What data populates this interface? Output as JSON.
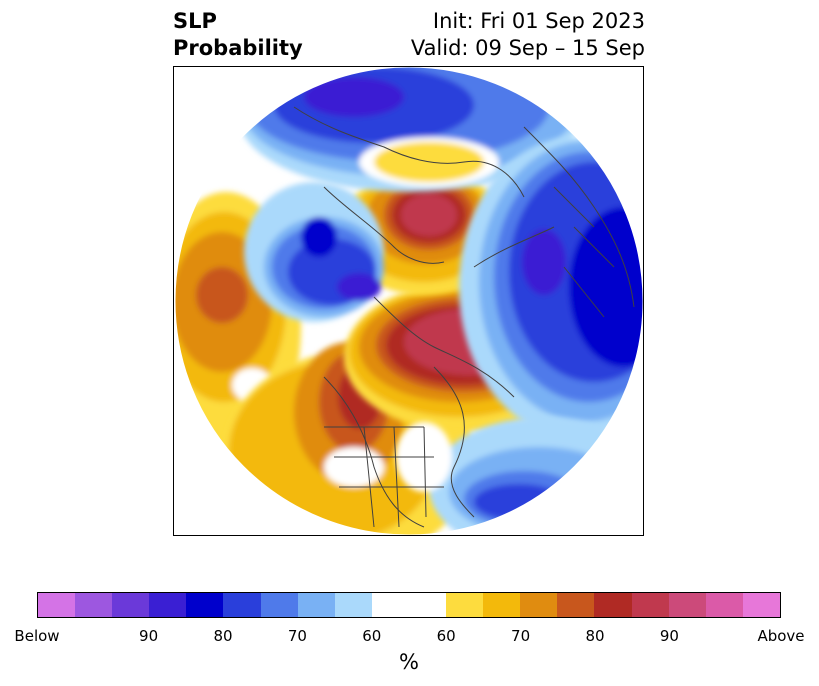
{
  "title": {
    "left_line1": "SLP",
    "left_line2": "Probability",
    "right_line1": "Init: Fri 01 Sep 2023",
    "right_line2": "Valid: 09 Sep – 15 Sep"
  },
  "map": {
    "projection": "north-polar-stereographic",
    "field": "sea level pressure tercile probability",
    "features": [
      "coastlines",
      "country-borders",
      "us-state-borders"
    ],
    "background_outside_domain": "#ffffff"
  },
  "colorbar": {
    "colors": [
      "#d473e6",
      "#9d57e0",
      "#6b39d9",
      "#3a1fd3",
      "#0000cc",
      "#2a3fdb",
      "#4f7aea",
      "#79b1f4",
      "#aad9fb",
      "#ffffff",
      "#ffffff",
      "#fddc3e",
      "#f3b90b",
      "#e08c10",
      "#c8571d",
      "#b02a24",
      "#c0394e",
      "#cc4a7a",
      "#db5aa8",
      "#e777d9"
    ],
    "tick_labels": [
      "Below",
      "90",
      "80",
      "70",
      "60",
      "60",
      "70",
      "80",
      "90",
      "Above"
    ],
    "unit_label": "%"
  },
  "regions": [
    {
      "name": "pacific-ocean-below-high",
      "category": "above",
      "peak_pct": 70
    },
    {
      "name": "siberia-above-core",
      "category": "above",
      "peak_pct": 80
    },
    {
      "name": "canadian-arctic-above-core",
      "category": "above",
      "peak_pct": 80
    },
    {
      "name": "western-canada-above",
      "category": "above",
      "peak_pct": 80
    },
    {
      "name": "alaska-below",
      "category": "below",
      "peak_pct": 80
    },
    {
      "name": "north-atlantic-europe-below",
      "category": "below",
      "peak_pct": 80
    },
    {
      "name": "western-atlantic-below",
      "category": "below",
      "peak_pct": 70
    }
  ]
}
